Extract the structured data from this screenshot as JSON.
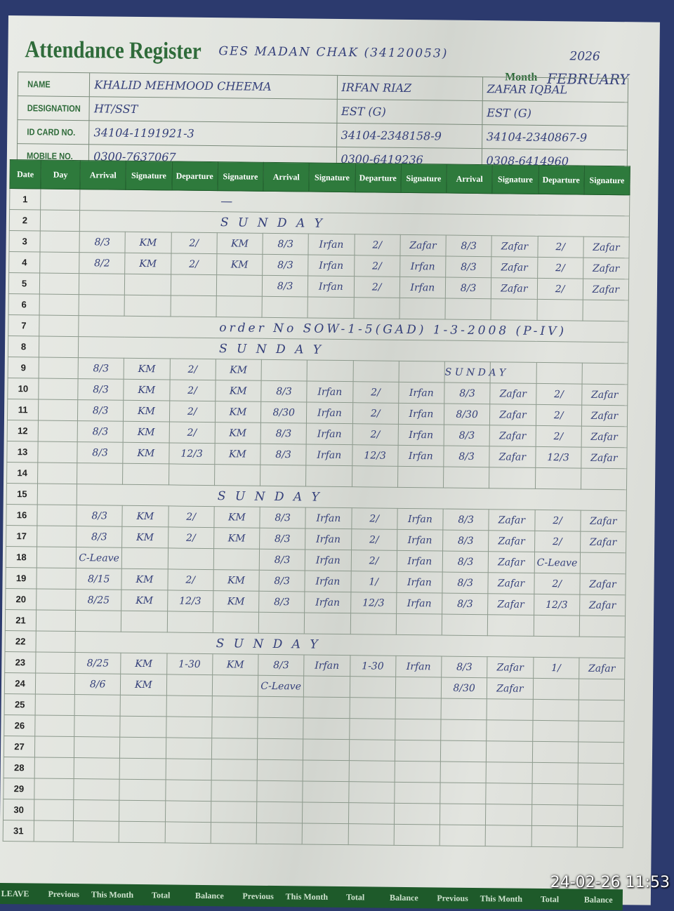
{
  "register": {
    "title": "Attendance Register",
    "school": "GES MADAN CHAK (34120053)",
    "year": "2026",
    "month_label": "Month",
    "month": "FEBRUARY"
  },
  "staff_info": {
    "labels": [
      "NAME",
      "DESIGNATION",
      "ID CARD NO.",
      "MOBILE NO."
    ],
    "staff": [
      {
        "name": "KHALID MEHMOOD CHEEMA",
        "designation": "HT/SST",
        "id_card": "34104-1191921-3",
        "mobile": "0300-7637067"
      },
      {
        "name": "IRFAN RIAZ",
        "designation": "EST (G)",
        "id_card": "34104-2348158-9",
        "mobile": "0300-6419236"
      },
      {
        "name": "ZAFAR IQBAL",
        "designation": "EST (G)",
        "id_card": "34104-2340867-9",
        "mobile": "0308-6414960"
      }
    ]
  },
  "columns": [
    "Date",
    "Day",
    "Arrival",
    "Signature",
    "Departure",
    "Signature",
    "Arrival",
    "Signature",
    "Departure",
    "Signature",
    "Arrival",
    "Signature",
    "Departure",
    "Signature"
  ],
  "rows": [
    {
      "date": "1",
      "note": "—"
    },
    {
      "date": "2",
      "note": "S U N D A Y"
    },
    {
      "date": "3",
      "cells": [
        "8/3",
        "KM",
        "2/",
        "KM",
        "8/3",
        "Irfan",
        "2/",
        "Zafar",
        "8/3",
        "Zafar",
        "2/",
        "Zafar"
      ]
    },
    {
      "date": "4",
      "cells": [
        "8/2",
        "KM",
        "2/",
        "KM",
        "8/3",
        "Irfan",
        "2/",
        "Irfan",
        "8/3",
        "Zafar",
        "2/",
        "Zafar"
      ]
    },
    {
      "date": "5",
      "cells": [
        "",
        "",
        "",
        "",
        "8/3",
        "Irfan",
        "2/",
        "Irfan",
        "8/3",
        "Zafar",
        "2/",
        "Zafar"
      ]
    },
    {
      "date": "6",
      "cells": []
    },
    {
      "date": "7",
      "note": "order No SOW-1-5(GAD) 1-3-2008 (P-IV)"
    },
    {
      "date": "8",
      "note": "S U N D A Y"
    },
    {
      "date": "9",
      "cells": [
        "8/3",
        "KM",
        "2/",
        "KM",
        "",
        "",
        "",
        "",
        "S U N D A Y",
        "",
        "",
        ""
      ]
    },
    {
      "date": "10",
      "cells": [
        "8/3",
        "KM",
        "2/",
        "KM",
        "8/3",
        "Irfan",
        "2/",
        "Irfan",
        "8/3",
        "Zafar",
        "2/",
        "Zafar"
      ]
    },
    {
      "date": "11",
      "cells": [
        "8/3",
        "KM",
        "2/",
        "KM",
        "8/30",
        "Irfan",
        "2/",
        "Irfan",
        "8/30",
        "Zafar",
        "2/",
        "Zafar"
      ]
    },
    {
      "date": "12",
      "cells": [
        "8/3",
        "KM",
        "2/",
        "KM",
        "8/3",
        "Irfan",
        "2/",
        "Irfan",
        "8/3",
        "Zafar",
        "2/",
        "Zafar"
      ]
    },
    {
      "date": "13",
      "cells": [
        "8/3",
        "KM",
        "12/3",
        "KM",
        "8/3",
        "Irfan",
        "12/3",
        "Irfan",
        "8/3",
        "Zafar",
        "12/3",
        "Zafar"
      ]
    },
    {
      "date": "14",
      "cells": []
    },
    {
      "date": "15",
      "note": "S U N D A Y"
    },
    {
      "date": "16",
      "cells": [
        "8/3",
        "KM",
        "2/",
        "KM",
        "8/3",
        "Irfan",
        "2/",
        "Irfan",
        "8/3",
        "Zafar",
        "2/",
        "Zafar"
      ]
    },
    {
      "date": "17",
      "cells": [
        "8/3",
        "KM",
        "2/",
        "KM",
        "8/3",
        "Irfan",
        "2/",
        "Irfan",
        "8/3",
        "Zafar",
        "2/",
        "Zafar"
      ]
    },
    {
      "date": "18",
      "cells": [
        "C-Leave",
        "",
        "",
        "",
        "8/3",
        "Irfan",
        "2/",
        "Irfan",
        "8/3",
        "Zafar",
        "C-Leave",
        ""
      ]
    },
    {
      "date": "19",
      "cells": [
        "8/15",
        "KM",
        "2/",
        "KM",
        "8/3",
        "Irfan",
        "1/",
        "Irfan",
        "8/3",
        "Zafar",
        "2/",
        "Zafar"
      ]
    },
    {
      "date": "20",
      "cells": [
        "8/25",
        "KM",
        "12/3",
        "KM",
        "8/3",
        "Irfan",
        "12/3",
        "Irfan",
        "8/3",
        "Zafar",
        "12/3",
        "Zafar"
      ]
    },
    {
      "date": "21",
      "cells": []
    },
    {
      "date": "22",
      "note": "S U N D A Y"
    },
    {
      "date": "23",
      "cells": [
        "8/25",
        "KM",
        "1-30",
        "KM",
        "8/3",
        "Irfan",
        "1-30",
        "Irfan",
        "8/3",
        "Zafar",
        "1/",
        "Zafar"
      ]
    },
    {
      "date": "24",
      "cells": [
        "8/6",
        "KM",
        "",
        "",
        "C-Leave",
        "",
        "",
        "",
        "8/30",
        "Zafar",
        "",
        ""
      ]
    },
    {
      "date": "25",
      "cells": []
    },
    {
      "date": "26",
      "cells": []
    },
    {
      "date": "27",
      "cells": []
    },
    {
      "date": "28",
      "cells": []
    },
    {
      "date": "29",
      "cells": []
    },
    {
      "date": "30",
      "cells": []
    },
    {
      "date": "31",
      "cells": []
    }
  ],
  "footer": [
    "LEAVE",
    "Previous",
    "This Month",
    "Total",
    "Balance",
    "Previous",
    "This Month",
    "Total",
    "Balance",
    "Previous",
    "This Month",
    "Total",
    "Balance"
  ],
  "timestamp": "24-02-26  11:53",
  "colors": {
    "header_green": "#2e7a3c",
    "ink": "#35407a",
    "paper": "#e6e8e2"
  }
}
